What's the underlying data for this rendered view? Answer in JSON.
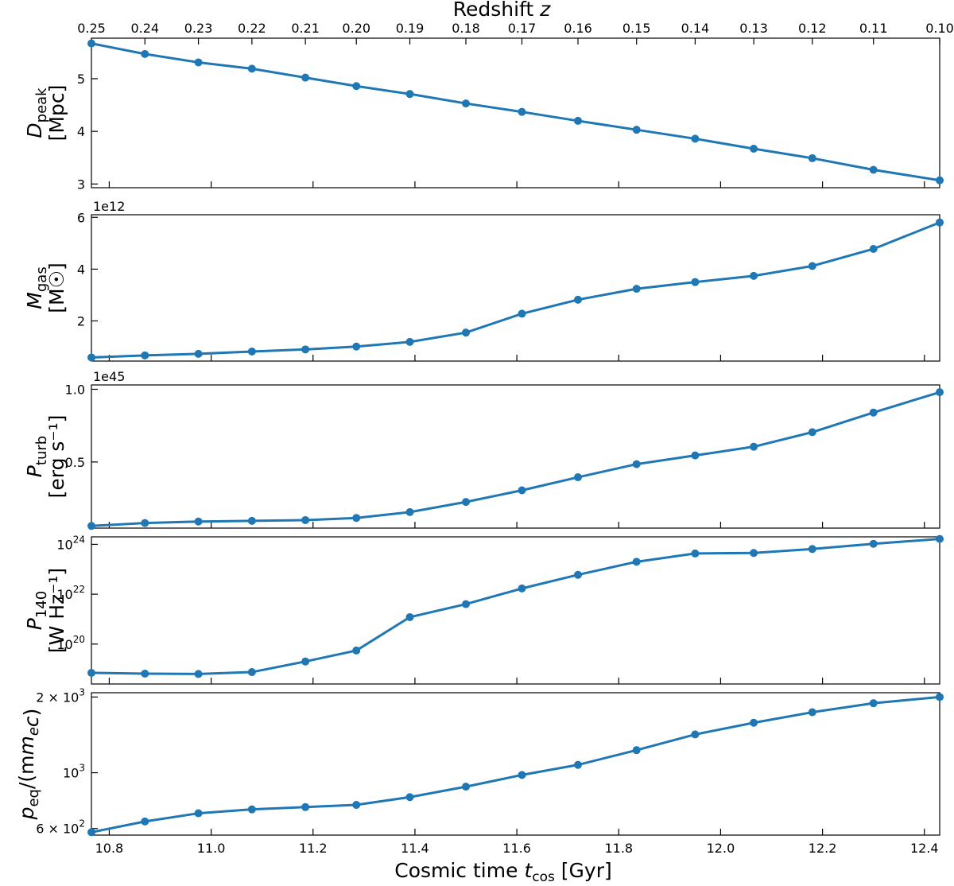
{
  "chart_data": {
    "type": "line",
    "top_axis": {
      "label_base": "Redshift ",
      "label_var": "z",
      "ticks": [
        "0.25",
        "0.24",
        "0.23",
        "0.22",
        "0.21",
        "0.20",
        "0.19",
        "0.18",
        "0.17",
        "0.16",
        "0.15",
        "0.14",
        "0.13",
        "0.12",
        "0.11",
        "0.10"
      ]
    },
    "x_axis": {
      "label_base": "Cosmic time ",
      "label_var": "t",
      "label_sub": "cos",
      "label_unit": " [Gyr]",
      "ticks": [
        "10.8",
        "11.0",
        "11.2",
        "11.4",
        "11.6",
        "11.8",
        "12.0",
        "12.2",
        "12.4"
      ],
      "tick_values": [
        10.8,
        11.0,
        11.2,
        11.4,
        11.6,
        11.8,
        12.0,
        12.2,
        12.4
      ],
      "xlim": [
        10.765,
        12.43
      ]
    },
    "x": [
      10.765,
      10.87,
      10.975,
      11.08,
      11.185,
      11.285,
      11.39,
      11.5,
      11.61,
      11.72,
      11.835,
      11.95,
      12.065,
      12.18,
      12.3,
      12.43
    ],
    "color": "#1f77b4",
    "panels": [
      {
        "id": "dpeak",
        "ylabel_sym": "D",
        "ylabel_sub": "peak",
        "ylabel_unit": "[Mpc]",
        "scale": "linear",
        "ylim": [
          2.93,
          5.77
        ],
        "ticks": [
          {
            "value": 3,
            "label": "3"
          },
          {
            "value": 4,
            "label": "4"
          },
          {
            "value": 5,
            "label": "5"
          }
        ],
        "offset_label": "",
        "values": [
          5.67,
          5.47,
          5.31,
          5.19,
          5.02,
          4.86,
          4.71,
          4.53,
          4.37,
          4.2,
          4.03,
          3.86,
          3.67,
          3.49,
          3.27,
          3.07
        ]
      },
      {
        "id": "mgas",
        "ylabel_sym": "M",
        "ylabel_sub": "gas",
        "ylabel_unit": "[M☉]",
        "scale": "linear",
        "ylim": [
          0.45,
          6.1
        ],
        "ticks": [
          {
            "value": 2,
            "label": "2"
          },
          {
            "value": 4,
            "label": "4"
          },
          {
            "value": 6,
            "label": "6"
          }
        ],
        "offset_label": "1e12",
        "values": [
          0.59,
          0.67,
          0.73,
          0.82,
          0.9,
          1.01,
          1.19,
          1.55,
          2.28,
          2.82,
          3.24,
          3.5,
          3.74,
          4.12,
          4.78,
          5.8
        ]
      },
      {
        "id": "pturb",
        "ylabel_sym": "P",
        "ylabel_sub": "turb",
        "ylabel_unit": "[erg s⁻¹]",
        "scale": "linear",
        "ylim": [
          0.045,
          1.03
        ],
        "ticks": [
          {
            "value": 0.5,
            "label": "0.5"
          },
          {
            "value": 1.0,
            "label": "1.0"
          }
        ],
        "offset_label": "1e45",
        "values": [
          0.06,
          0.08,
          0.09,
          0.095,
          0.1,
          0.115,
          0.155,
          0.225,
          0.305,
          0.395,
          0.485,
          0.545,
          0.605,
          0.705,
          0.84,
          0.98
        ]
      },
      {
        "id": "p140",
        "ylabel_sym": "P",
        "ylabel_sub": "140",
        "ylabel_unit": "[W Hz⁻¹]",
        "scale": "log",
        "ylim": [
          2.5e+18,
          2e+24
        ],
        "ticks": [
          {
            "value": 1e+20,
            "label_base": "10",
            "label_exp": "20"
          },
          {
            "value": 1e+22,
            "label_base": "10",
            "label_exp": "22"
          },
          {
            "value": 1e+24,
            "label_base": "10",
            "label_exp": "24"
          }
        ],
        "offset_label": "",
        "values": [
          7e+18,
          6.5e+18,
          6.3e+18,
          7.5e+18,
          2e+19,
          5.5e+19,
          1.2e+21,
          4e+21,
          1.7e+22,
          6e+22,
          2e+23,
          4.3e+23,
          4.5e+23,
          6.5e+23,
          1.05e+24,
          1.65e+24
        ]
      },
      {
        "id": "peq",
        "ylabel_sym": "p",
        "ylabel_sub": "eq",
        "ylabel_unit": "",
        "ylabel_extra": "/(m",
        "ylabel_extra_sub": "e",
        "ylabel_extra_end": "c)",
        "scale": "log",
        "ylim": [
          565,
          2080
        ],
        "ticks": [
          {
            "value": 600,
            "label_base": "6 × 10",
            "label_exp": "2"
          },
          {
            "value": 1000,
            "label_base": "10",
            "label_exp": "3"
          },
          {
            "value": 2000,
            "label_base": "2 × 10",
            "label_exp": "3"
          }
        ],
        "offset_label": "",
        "values": [
          580,
          640,
          690,
          715,
          730,
          745,
          800,
          880,
          980,
          1075,
          1230,
          1420,
          1580,
          1740,
          1890,
          2000
        ]
      }
    ]
  }
}
